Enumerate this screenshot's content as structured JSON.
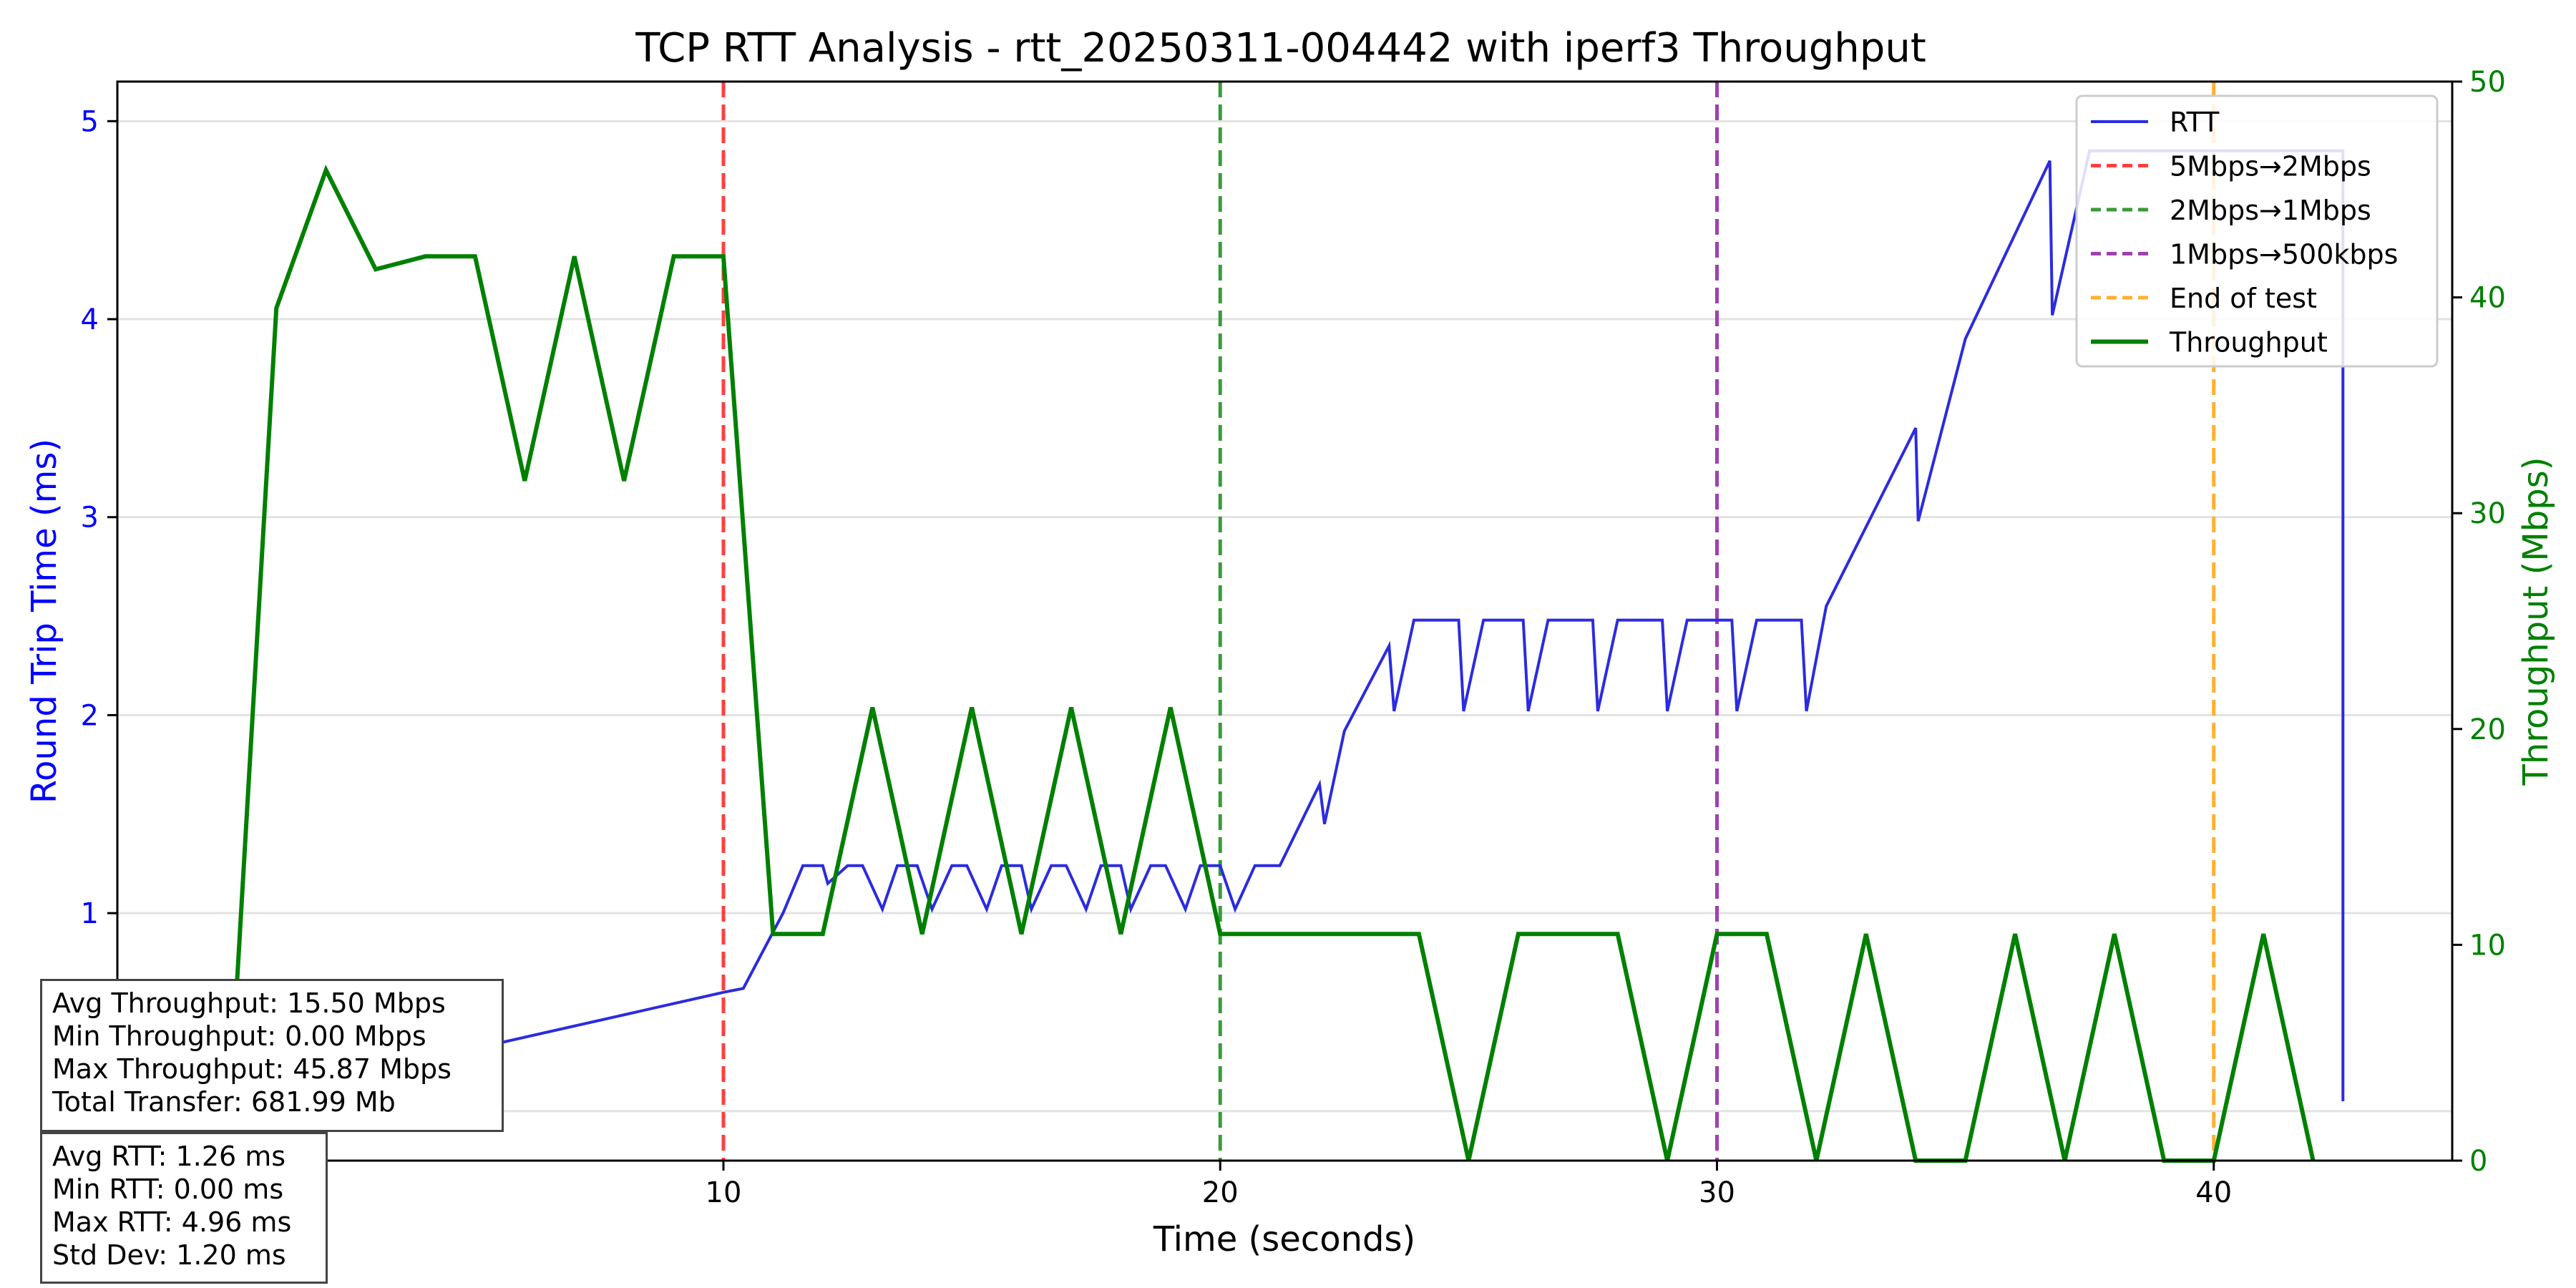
{
  "chart_data": {
    "type": "line",
    "title": "TCP RTT Analysis - rtt_20250311-004442 with iperf3 Throughput",
    "xlabel": "Time (seconds)",
    "ylabel_left": "Round Trip Time (ms)",
    "ylabel_right": "Throughput (Mbps)",
    "xlim": [
      -2.2,
      44.8
    ],
    "ylim_left": [
      -0.25,
      5.2
    ],
    "ylim_right": [
      0,
      50
    ],
    "x_ticks": [
      10,
      20,
      30,
      40
    ],
    "y_left_ticks": [
      0,
      1,
      2,
      3,
      4,
      5
    ],
    "y_right_ticks": [
      0,
      10,
      20,
      30,
      40,
      50
    ],
    "grid": true,
    "legend_placement": "top-right",
    "colors": {
      "rtt": "#2b2be0",
      "throughput": "#008000",
      "left_axis": "#0000ff",
      "right_axis": "#008000"
    },
    "series": [
      {
        "name": "RTT",
        "axis": "left",
        "color": "#2b2be0",
        "x": [
          0.0,
          0.3,
          10.0,
          10.4,
          11.2,
          11.6,
          12.0,
          12.1,
          12.5,
          12.8,
          13.2,
          13.5,
          13.9,
          14.2,
          14.6,
          14.9,
          15.3,
          15.6,
          16.0,
          16.2,
          16.6,
          16.9,
          17.3,
          17.6,
          18.0,
          18.2,
          18.6,
          18.9,
          19.3,
          19.6,
          20.0,
          20.3,
          20.7,
          21.0,
          21.2,
          22.0,
          22.1,
          22.5,
          23.4,
          23.5,
          23.9,
          24.0,
          24.8,
          24.9,
          25.3,
          26.1,
          26.2,
          26.6,
          27.5,
          27.6,
          28.0,
          28.9,
          29.0,
          29.4,
          30.3,
          30.4,
          30.8,
          31.7,
          31.8,
          32.2,
          34.0,
          34.05,
          35.0,
          36.7,
          36.75,
          37.5,
          37.5,
          42.6,
          42.6
        ],
        "values": [
          0.0,
          0.05,
          0.6,
          0.62,
          1.0,
          1.24,
          1.24,
          1.15,
          1.24,
          1.24,
          1.02,
          1.24,
          1.24,
          1.02,
          1.24,
          1.24,
          1.02,
          1.24,
          1.24,
          1.02,
          1.24,
          1.24,
          1.02,
          1.24,
          1.24,
          1.02,
          1.24,
          1.24,
          1.02,
          1.24,
          1.24,
          1.02,
          1.24,
          1.24,
          1.24,
          1.65,
          1.45,
          1.92,
          2.35,
          2.02,
          2.48,
          2.48,
          2.48,
          2.02,
          2.48,
          2.48,
          2.02,
          2.48,
          2.48,
          2.02,
          2.48,
          2.48,
          2.02,
          2.48,
          2.48,
          2.02,
          2.48,
          2.48,
          2.02,
          2.55,
          3.45,
          2.98,
          3.9,
          4.8,
          4.02,
          4.85,
          4.85,
          4.85,
          0.05
        ]
      },
      {
        "name": "Throughput",
        "axis": "right",
        "color": "#008000",
        "x": [
          0.0,
          1.0,
          2.0,
          3.0,
          4.0,
          5.0,
          6.0,
          7.0,
          8.0,
          9.0,
          10.0,
          11.0,
          12.0,
          13.0,
          14.0,
          15.0,
          16.0,
          17.0,
          18.0,
          19.0,
          20.0,
          21.0,
          22.0,
          23.0,
          24.0,
          25.0,
          26.0,
          27.0,
          28.0,
          29.0,
          30.0,
          31.0,
          32.0,
          33.0,
          34.0,
          35.0,
          36.0,
          37.0,
          38.0,
          39.0,
          40.0,
          41.0,
          42.0
        ],
        "values": [
          0.0,
          39.5,
          45.9,
          41.3,
          41.9,
          41.9,
          31.5,
          41.9,
          31.5,
          41.9,
          41.9,
          10.5,
          10.5,
          21.0,
          10.5,
          21.0,
          10.5,
          21.0,
          10.5,
          21.0,
          10.5,
          10.5,
          10.5,
          10.5,
          10.5,
          0.0,
          10.5,
          10.5,
          10.5,
          0.0,
          10.5,
          10.5,
          0.0,
          10.5,
          0.0,
          0.0,
          10.5,
          0.0,
          10.5,
          0.0,
          0.0,
          10.5,
          0.0
        ]
      }
    ],
    "vlines": [
      {
        "x": 10,
        "label": "5Mbps→2Mbps",
        "color": "#ff4040"
      },
      {
        "x": 20,
        "label": "2Mbps→1Mbps",
        "color": "#3a9a3a"
      },
      {
        "x": 30,
        "label": "1Mbps→500kbps",
        "color": "#a040b0"
      },
      {
        "x": 40,
        "label": "End of test",
        "color": "#ffb030"
      }
    ],
    "legend": [
      "RTT",
      "5Mbps→2Mbps",
      "2Mbps→1Mbps",
      "1Mbps→500kbps",
      "End of test",
      "Throughput"
    ],
    "stats_throughput": [
      "Avg Throughput: 15.50 Mbps",
      "Min Throughput: 0.00 Mbps",
      "Max Throughput: 45.87 Mbps",
      "Total Transfer: 681.99 Mb"
    ],
    "stats_rtt": [
      "Avg RTT: 1.26 ms",
      "Min RTT: 0.00 ms",
      "Max RTT: 4.96 ms",
      "Std Dev: 1.20 ms"
    ]
  }
}
